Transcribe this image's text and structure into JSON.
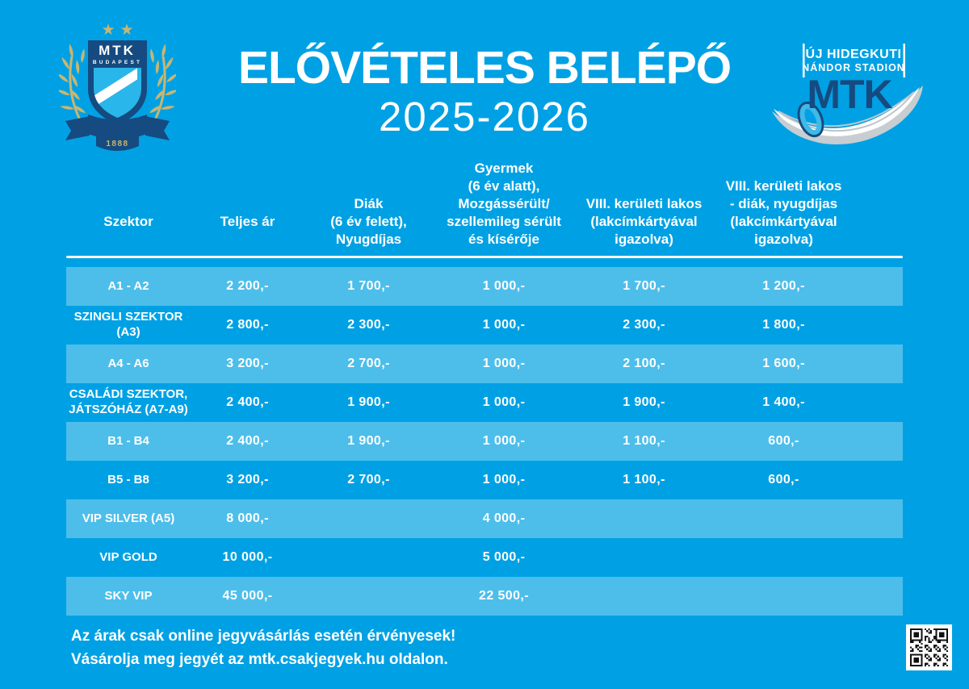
{
  "header": {
    "title": "ELŐVÉTELES BELÉPŐ",
    "season": "2025-2026",
    "crest": {
      "club": "MTK",
      "city": "BUDAPEST",
      "founded": "1888"
    },
    "stadium": {
      "line1": "ÚJ HIDEGKUTI",
      "line2": "NÁNDOR STADION",
      "brand": "MTK"
    }
  },
  "table": {
    "columns": [
      {
        "lines": [
          "Szektor"
        ]
      },
      {
        "lines": [
          "Teljes ár"
        ]
      },
      {
        "lines": [
          "Diák",
          "(6 év felett),",
          "Nyugdíjas"
        ]
      },
      {
        "lines": [
          "Gyermek",
          "(6 év alatt),",
          "Mozgássérült/",
          "szellemileg sérült",
          "és kísérője"
        ]
      },
      {
        "lines": [
          "VIII. kerületi lakos",
          "(lakcímkártyával",
          "igazolva)"
        ]
      },
      {
        "lines": [
          "VIII. kerületi lakos",
          "- diák, nyugdíjas",
          "(lakcímkártyával",
          "igazolva)"
        ]
      }
    ],
    "rows": [
      {
        "sector": [
          "A1 - A2"
        ],
        "prices": [
          "2 200,-",
          "1 700,-",
          "1 000,-",
          "1 700,-",
          "1 200,-"
        ]
      },
      {
        "sector": [
          "SZINGLI SZEKTOR",
          "(A3)"
        ],
        "prices": [
          "2 800,-",
          "2 300,-",
          "1 000,-",
          "2 300,-",
          "1 800,-"
        ]
      },
      {
        "sector": [
          "A4 - A6"
        ],
        "prices": [
          "3 200,-",
          "2 700,-",
          "1 000,-",
          "2 100,-",
          "1 600,-"
        ]
      },
      {
        "sector": [
          "CSALÁDI SZEKTOR,",
          "JÁTSZÓHÁZ (A7-A9)"
        ],
        "prices": [
          "2 400,-",
          "1 900,-",
          "1 000,-",
          "1 900,-",
          "1 400,-"
        ]
      },
      {
        "sector": [
          "B1 - B4"
        ],
        "prices": [
          "2 400,-",
          "1 900,-",
          "1 000,-",
          "1 100,-",
          "600,-"
        ]
      },
      {
        "sector": [
          "B5 - B8"
        ],
        "prices": [
          "3 200,-",
          "2 700,-",
          "1 000,-",
          "1 100,-",
          "600,-"
        ]
      },
      {
        "sector": [
          "VIP SILVER (A5)"
        ],
        "prices": [
          "8 000,-",
          "",
          "4 000,-",
          "",
          ""
        ]
      },
      {
        "sector": [
          "VIP GOLD"
        ],
        "prices": [
          "10 000,-",
          "",
          "5 000,-",
          "",
          ""
        ]
      },
      {
        "sector": [
          "SKY VIP"
        ],
        "prices": [
          "45 000,-",
          "",
          "22 500,-",
          "",
          ""
        ]
      }
    ]
  },
  "footer": {
    "note1": "Az árak csak online jegyvásárlás esetén érvényesek!",
    "note2": "Vásárolja meg jegyét az mtk.csakjegyek.hu oldalon."
  },
  "colors": {
    "background": "#00A1E4",
    "row_light": "#4DBEEA",
    "navy": "#154B80",
    "gold": "#C9B672",
    "crest_blue": "#29B6EA",
    "text": "#FFFFFF"
  }
}
